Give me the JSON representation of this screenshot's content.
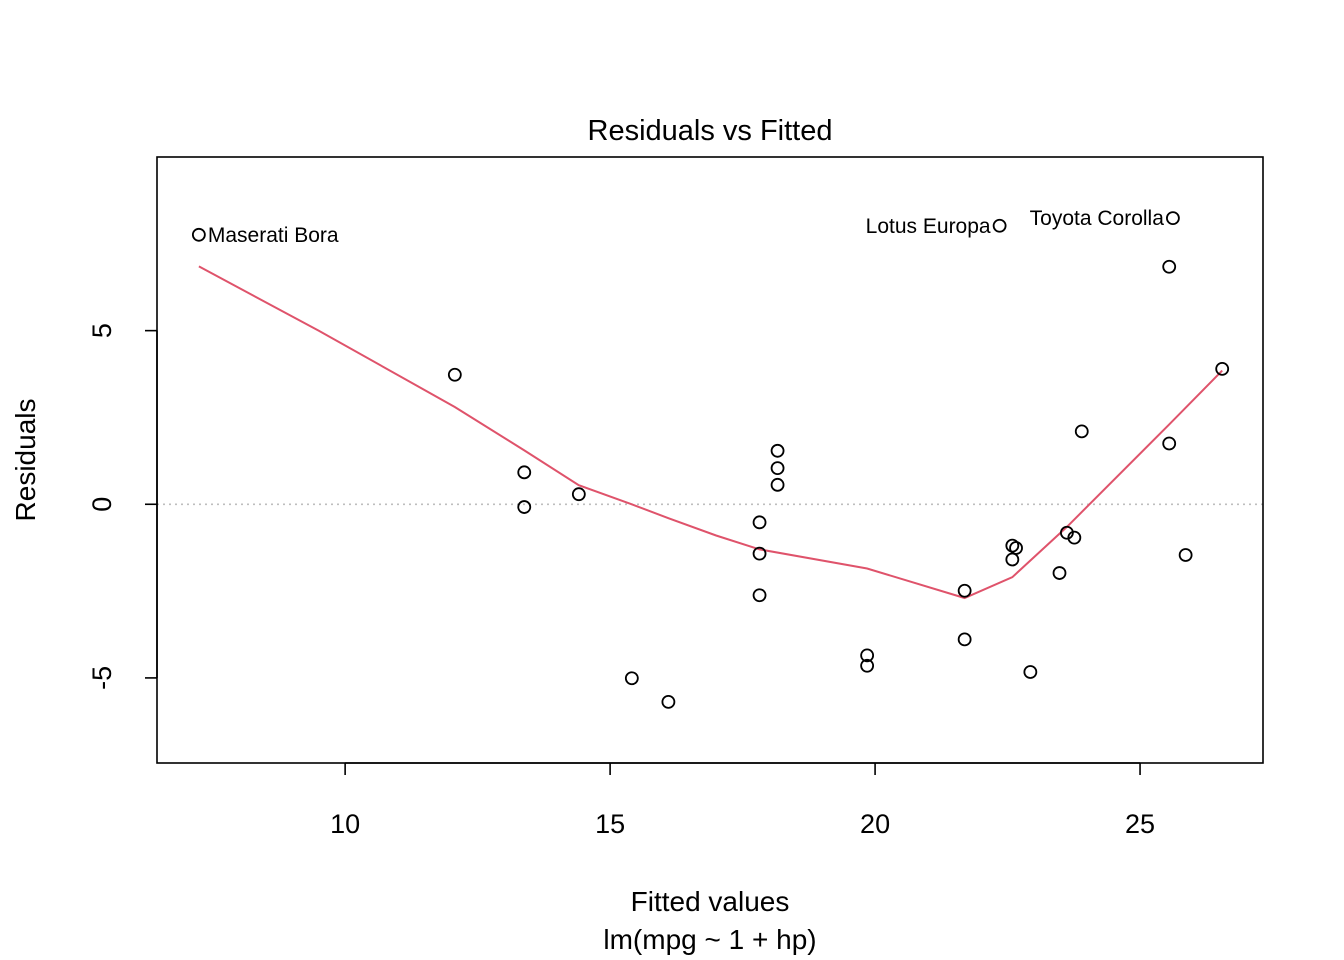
{
  "chart_data": {
    "type": "scatter",
    "title": "Residuals vs Fitted",
    "xlabel": "Fitted values",
    "sublabel": "lm(mpg ~ 1 + hp)",
    "ylabel": "Residuals",
    "xlim": [
      6.45,
      27.32
    ],
    "ylim": [
      -7.45,
      10.0
    ],
    "xticks": [
      10,
      15,
      20,
      25
    ],
    "yticks": [
      -5,
      0,
      5
    ],
    "grid": false,
    "reference_line": {
      "y": 0,
      "style": "dotted",
      "color": "#bebebe"
    },
    "point_color": "#000000",
    "smooth_color": "#DF536B",
    "points": [
      {
        "x": 7.24,
        "y": 7.76
      },
      {
        "x": 12.07,
        "y": 3.73
      },
      {
        "x": 13.38,
        "y": 0.92
      },
      {
        "x": 13.38,
        "y": -0.08
      },
      {
        "x": 14.41,
        "y": 0.29
      },
      {
        "x": 15.41,
        "y": -5.01
      },
      {
        "x": 16.1,
        "y": -5.69
      },
      {
        "x": 17.82,
        "y": -0.52
      },
      {
        "x": 17.82,
        "y": -1.42
      },
      {
        "x": 17.82,
        "y": -2.62
      },
      {
        "x": 18.16,
        "y": 1.54
      },
      {
        "x": 18.16,
        "y": 1.04
      },
      {
        "x": 18.16,
        "y": 0.56
      },
      {
        "x": 19.85,
        "y": -4.35
      },
      {
        "x": 19.85,
        "y": -4.65
      },
      {
        "x": 21.69,
        "y": -2.49
      },
      {
        "x": 21.69,
        "y": -3.89
      },
      {
        "x": 22.35,
        "y": 8.02
      },
      {
        "x": 22.59,
        "y": -1.19
      },
      {
        "x": 22.59,
        "y": -1.59
      },
      {
        "x": 22.66,
        "y": -1.26
      },
      {
        "x": 22.93,
        "y": -4.83
      },
      {
        "x": 23.48,
        "y": -1.98
      },
      {
        "x": 23.62,
        "y": -0.82
      },
      {
        "x": 23.76,
        "y": -0.96
      },
      {
        "x": 23.9,
        "y": 2.1
      },
      {
        "x": 25.55,
        "y": 6.84
      },
      {
        "x": 25.55,
        "y": 1.75
      },
      {
        "x": 25.62,
        "y": 8.24
      },
      {
        "x": 25.86,
        "y": -1.46
      },
      {
        "x": 26.55,
        "y": 3.9
      }
    ],
    "labels": [
      {
        "text": "Maserati Bora",
        "x": 7.24,
        "y": 7.76,
        "side": "right"
      },
      {
        "text": "Lotus Europa",
        "x": 22.35,
        "y": 8.02,
        "side": "left"
      },
      {
        "text": "Toyota Corolla",
        "x": 25.62,
        "y": 8.24,
        "side": "left"
      }
    ],
    "smooth": [
      {
        "x": 7.24,
        "y": 6.85
      },
      {
        "x": 9.5,
        "y": 5.0
      },
      {
        "x": 12.07,
        "y": 2.8
      },
      {
        "x": 13.38,
        "y": 1.55
      },
      {
        "x": 14.41,
        "y": 0.55
      },
      {
        "x": 15.41,
        "y": 0.0
      },
      {
        "x": 16.1,
        "y": -0.4
      },
      {
        "x": 17.0,
        "y": -0.9
      },
      {
        "x": 17.82,
        "y": -1.3
      },
      {
        "x": 19.85,
        "y": -1.85
      },
      {
        "x": 21.69,
        "y": -2.7
      },
      {
        "x": 22.59,
        "y": -2.1
      },
      {
        "x": 23.62,
        "y": -0.65
      },
      {
        "x": 25.55,
        "y": 2.3
      },
      {
        "x": 26.55,
        "y": 3.85
      }
    ]
  }
}
